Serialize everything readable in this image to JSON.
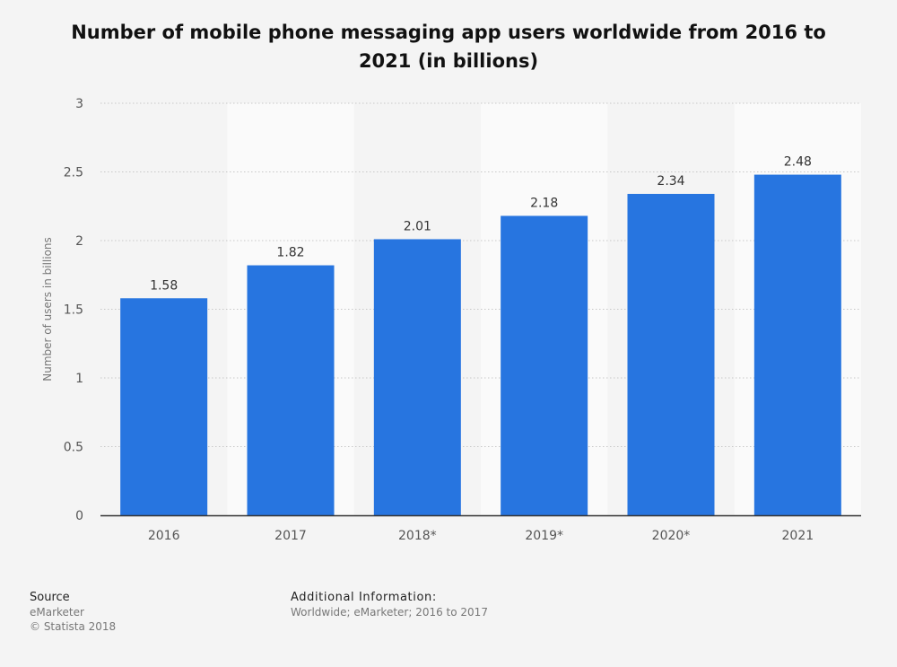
{
  "colors": {
    "bar": "#2775e0",
    "band": "#fafafa",
    "grid": "#c8c8c8",
    "axis": "#333333",
    "tick_text": "#555555",
    "label_text": "#333333"
  },
  "chart_data": {
    "type": "bar",
    "title": "Number of mobile phone messaging app users worldwide from 2016 to 2021 (in billions)",
    "xlabel": "",
    "ylabel": "Number of users in billions",
    "categories": [
      "2016",
      "2017",
      "2018*",
      "2019*",
      "2020*",
      "2021"
    ],
    "values": [
      1.58,
      1.82,
      2.01,
      2.18,
      2.34,
      2.48
    ],
    "value_labels": [
      "1.58",
      "1.82",
      "2.01",
      "2.18",
      "2.34",
      "2.48"
    ],
    "ylim": [
      0,
      3
    ],
    "yticks": [
      0,
      0.5,
      1,
      1.5,
      2,
      2.5,
      3
    ],
    "ytick_labels": [
      "0",
      "0.5",
      "1",
      "1.5",
      "2",
      "2.5",
      "3"
    ],
    "grid": true
  },
  "footer": {
    "source_heading": "Source",
    "source_lines": [
      "eMarketer",
      "© Statista 2018"
    ],
    "additional_heading": "Additional Information:",
    "additional_text": "Worldwide; eMarketer; 2016 to 2017"
  }
}
